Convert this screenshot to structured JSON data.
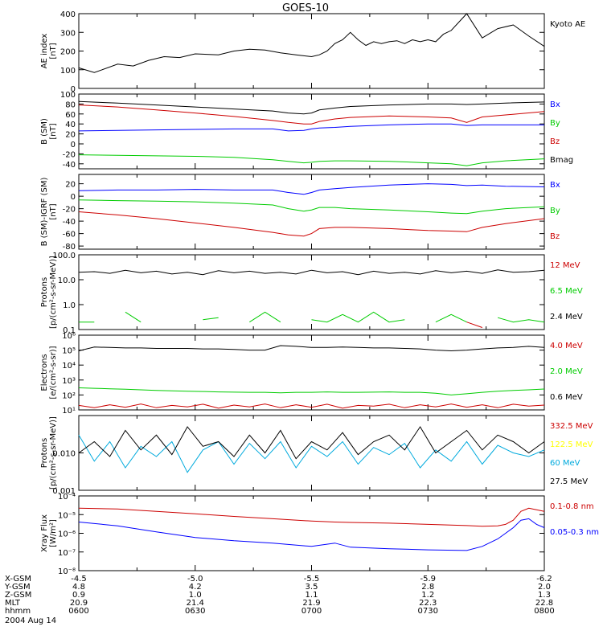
{
  "title": "GOES-10",
  "colors": {
    "black": "#000000",
    "red": "#cc0000",
    "green": "#00cc00",
    "blue": "#0000ff",
    "yellow": "#ffff00",
    "cyan": "#00aadd"
  },
  "chart_data": [
    {
      "type": "line",
      "id": "ae",
      "ylabel": [
        "AE index",
        "[nT]"
      ],
      "yscale": "linear",
      "ylim": [
        0,
        400
      ],
      "ticks": [
        {
          "v": 0,
          "label": "0"
        },
        {
          "v": 100,
          "label": "100"
        },
        {
          "v": 200,
          "label": "200"
        },
        {
          "v": 300,
          "label": "300"
        },
        {
          "v": 400,
          "label": "400"
        }
      ],
      "x": [
        0,
        4,
        6,
        10,
        14,
        18,
        22,
        26,
        30,
        36,
        40,
        44,
        48,
        52,
        56,
        60,
        62,
        64,
        66,
        68,
        70,
        72,
        74,
        76,
        78,
        80,
        82,
        84,
        86,
        88,
        90,
        92,
        94,
        96,
        100,
        104,
        108,
        112,
        116,
        120
      ],
      "series": [
        {
          "name": "Kyoto AE",
          "color": "black",
          "values": [
            110,
            85,
            100,
            130,
            120,
            150,
            170,
            165,
            185,
            180,
            200,
            210,
            205,
            190,
            180,
            170,
            180,
            200,
            240,
            260,
            300,
            260,
            230,
            250,
            240,
            250,
            255,
            240,
            260,
            250,
            260,
            250,
            290,
            310,
            400,
            270,
            320,
            340,
            280,
            225
          ]
        }
      ]
    },
    {
      "type": "line",
      "id": "bsm",
      "ylabel": [
        "B (SM)",
        "[nT]"
      ],
      "yscale": "linear",
      "ylim": [
        -50,
        100
      ],
      "ticks": [
        {
          "v": -40,
          "label": "-40"
        },
        {
          "v": -20,
          "label": "-20"
        },
        {
          "v": 0,
          "label": "0"
        },
        {
          "v": 20,
          "label": "20"
        },
        {
          "v": 40,
          "label": "40"
        },
        {
          "v": 60,
          "label": "60"
        },
        {
          "v": 80,
          "label": "80"
        },
        {
          "v": 100,
          "label": "100"
        }
      ],
      "x": [
        0,
        10,
        20,
        30,
        40,
        50,
        54,
        58,
        60,
        62,
        66,
        70,
        80,
        90,
        96,
        100,
        104,
        110,
        120
      ],
      "series": [
        {
          "name": "Bx",
          "color": "blue",
          "values": [
            26,
            27,
            28,
            29,
            30,
            30,
            26,
            27,
            30,
            32,
            33,
            35,
            38,
            40,
            40,
            37,
            38,
            38,
            38
          ]
        },
        {
          "name": "By",
          "color": "green",
          "values": [
            -22,
            -23,
            -24,
            -25,
            -27,
            -32,
            -35,
            -38,
            -37,
            -35,
            -34,
            -34,
            -35,
            -38,
            -40,
            -44,
            -38,
            -34,
            -30
          ]
        },
        {
          "name": "Bz",
          "color": "red",
          "values": [
            78,
            74,
            68,
            62,
            55,
            47,
            43,
            40,
            40,
            45,
            50,
            53,
            56,
            54,
            52,
            43,
            54,
            58,
            65
          ]
        },
        {
          "name": "Bmag",
          "color": "black",
          "values": [
            85,
            82,
            78,
            74,
            70,
            66,
            62,
            60,
            62,
            68,
            72,
            75,
            78,
            80,
            80,
            79,
            80,
            82,
            84
          ]
        }
      ]
    },
    {
      "type": "line",
      "id": "dbsm",
      "ylabel": [
        "B (SM)-IGRF (SM)",
        "[nT]"
      ],
      "yscale": "linear",
      "ylim": [
        -85,
        35
      ],
      "ticks": [
        {
          "v": -80,
          "label": "-80"
        },
        {
          "v": -60,
          "label": "-60"
        },
        {
          "v": -40,
          "label": "-40"
        },
        {
          "v": -20,
          "label": "-20"
        },
        {
          "v": 0,
          "label": "0"
        },
        {
          "v": 20,
          "label": "20"
        }
      ],
      "x": [
        0,
        10,
        20,
        30,
        40,
        50,
        54,
        58,
        60,
        62,
        66,
        70,
        80,
        90,
        96,
        100,
        104,
        110,
        120
      ],
      "series": [
        {
          "name": "Bx",
          "color": "blue",
          "values": [
            9,
            10,
            10,
            11,
            10,
            10,
            6,
            3,
            6,
            10,
            12,
            14,
            18,
            20,
            19,
            17,
            18,
            16,
            15
          ]
        },
        {
          "name": "By",
          "color": "green",
          "values": [
            -6,
            -7,
            -8,
            -9,
            -11,
            -14,
            -20,
            -24,
            -22,
            -18,
            -18,
            -20,
            -22,
            -25,
            -27,
            -28,
            -24,
            -20,
            -17
          ]
        },
        {
          "name": "Bz",
          "color": "red",
          "values": [
            -25,
            -30,
            -36,
            -43,
            -50,
            -58,
            -62,
            -64,
            -60,
            -52,
            -50,
            -50,
            -52,
            -55,
            -56,
            -57,
            -50,
            -44,
            -36
          ]
        }
      ]
    },
    {
      "type": "line",
      "id": "protons_low",
      "ylabel": [
        "Protons",
        "[p/(cm²-s-sr-MeV)]"
      ],
      "yscale": "log",
      "ylim": [
        0.1,
        100
      ],
      "ticks": [
        {
          "v": 0.1,
          "label": "0.1"
        },
        {
          "v": 1,
          "label": "1.0"
        },
        {
          "v": 10,
          "label": "10.0"
        },
        {
          "v": 100,
          "label": "100.0"
        }
      ],
      "x": [
        0,
        4,
        8,
        12,
        16,
        20,
        24,
        28,
        32,
        36,
        40,
        44,
        48,
        52,
        56,
        60,
        64,
        68,
        72,
        76,
        80,
        84,
        88,
        92,
        96,
        100,
        104,
        108,
        112,
        116,
        120
      ],
      "series": [
        {
          "name": "12 MeV",
          "color": "red",
          "values": [
            null,
            null,
            null,
            null,
            null,
            null,
            null,
            null,
            null,
            null,
            null,
            null,
            null,
            null,
            null,
            null,
            null,
            null,
            null,
            null,
            null,
            null,
            null,
            null,
            null,
            0.2,
            0.12,
            null,
            null,
            null,
            null
          ]
        },
        {
          "name": "6.5 MeV",
          "color": "green",
          "values": [
            0.2,
            0.2,
            null,
            0.5,
            0.2,
            null,
            0.2,
            null,
            0.25,
            0.3,
            null,
            0.2,
            0.5,
            0.2,
            null,
            0.25,
            0.2,
            0.4,
            0.2,
            0.5,
            0.2,
            0.25,
            null,
            0.2,
            0.4,
            0.2,
            null,
            0.3,
            0.2,
            0.25,
            0.2
          ]
        },
        {
          "name": "2.4 MeV",
          "color": "black",
          "values": [
            20,
            21,
            18,
            24,
            19,
            22,
            17,
            20,
            16,
            23,
            19,
            22,
            18,
            20,
            17,
            24,
            19,
            21,
            16,
            22,
            18,
            20,
            17,
            23,
            19,
            22,
            18,
            25,
            20,
            21,
            24
          ]
        }
      ]
    },
    {
      "type": "line",
      "id": "electrons",
      "ylabel": [
        "Electrons",
        "[e/(cm²-s-sr)]"
      ],
      "yscale": "log",
      "ylim": [
        10,
        1000000
      ],
      "ticks": [
        {
          "v": 10,
          "label": "10¹"
        },
        {
          "v": 100,
          "label": "10²"
        },
        {
          "v": 1000,
          "label": "10³"
        },
        {
          "v": 10000,
          "label": "10⁴"
        },
        {
          "v": 100000,
          "label": "10⁵"
        },
        {
          "v": 1000000,
          "label": "10⁶"
        }
      ],
      "x": [
        0,
        4,
        8,
        12,
        16,
        20,
        24,
        28,
        32,
        36,
        40,
        44,
        48,
        52,
        56,
        60,
        64,
        68,
        72,
        76,
        80,
        84,
        88,
        92,
        96,
        100,
        104,
        108,
        112,
        116,
        120
      ],
      "series": [
        {
          "name": "4.0 MeV",
          "color": "red",
          "values": [
            20,
            14,
            22,
            15,
            25,
            14,
            20,
            16,
            24,
            13,
            21,
            16,
            25,
            14,
            22,
            15,
            24,
            13,
            20,
            18,
            24,
            14,
            22,
            16,
            25,
            15,
            22,
            14,
            24,
            18,
            21
          ]
        },
        {
          "name": "2.0 MeV",
          "color": "green",
          "values": [
            300,
            280,
            260,
            240,
            220,
            200,
            190,
            180,
            170,
            160,
            155,
            150,
            150,
            140,
            150,
            150,
            160,
            150,
            150,
            155,
            160,
            150,
            150,
            130,
            100,
            120,
            150,
            180,
            200,
            220,
            250
          ]
        },
        {
          "name": "0.6 MeV",
          "color": "black",
          "values": [
            90000,
            160000,
            150000,
            140000,
            140000,
            130000,
            130000,
            130000,
            120000,
            120000,
            110000,
            100000,
            100000,
            200000,
            180000,
            150000,
            150000,
            160000,
            150000,
            140000,
            140000,
            130000,
            120000,
            100000,
            90000,
            100000,
            120000,
            140000,
            150000,
            180000,
            150000
          ]
        }
      ]
    },
    {
      "type": "line",
      "id": "protons_high",
      "ylabel": [
        "Protons",
        "[p/(cm²-s-sr-MeV)]"
      ],
      "yscale": "log",
      "ylim": [
        0.001,
        0.1
      ],
      "ticks": [
        {
          "v": 0.001,
          "label": "0.001"
        },
        {
          "v": 0.01,
          "label": "0.010"
        }
      ],
      "x": [
        0,
        4,
        8,
        12,
        16,
        20,
        24,
        28,
        32,
        36,
        40,
        44,
        48,
        52,
        56,
        60,
        64,
        68,
        72,
        76,
        80,
        84,
        88,
        92,
        96,
        100,
        104,
        108,
        112,
        116,
        120
      ],
      "series": [
        {
          "name": "332.5 MeV",
          "color": "red",
          "values": [
            null,
            null,
            null,
            null,
            null,
            null,
            null,
            null,
            null,
            null,
            null,
            null,
            null,
            null,
            null,
            null,
            null,
            null,
            null,
            null,
            null,
            null,
            null,
            null,
            null,
            null,
            null,
            null,
            null,
            null,
            null
          ]
        },
        {
          "name": "122.5 MeV",
          "color": "yellow",
          "values": [
            null,
            null,
            null,
            null,
            null,
            null,
            null,
            null,
            null,
            null,
            null,
            null,
            null,
            null,
            null,
            null,
            null,
            null,
            null,
            null,
            null,
            null,
            null,
            null,
            null,
            null,
            null,
            null,
            null,
            null,
            null
          ]
        },
        {
          "name": "60 MeV",
          "color": "cyan",
          "values": [
            0.03,
            0.006,
            0.02,
            0.004,
            0.015,
            0.008,
            0.02,
            0.003,
            0.012,
            0.02,
            0.005,
            0.018,
            0.007,
            0.02,
            0.004,
            0.015,
            0.008,
            0.02,
            0.005,
            0.014,
            0.009,
            0.018,
            0.004,
            0.012,
            0.006,
            0.02,
            0.005,
            0.016,
            0.01,
            0.008,
            0.012
          ]
        },
        {
          "name": "27.5 MeV",
          "color": "black",
          "values": [
            0.01,
            0.02,
            0.008,
            0.04,
            0.012,
            0.03,
            0.009,
            0.05,
            0.015,
            0.02,
            0.008,
            0.03,
            0.01,
            0.04,
            0.007,
            0.02,
            0.012,
            0.035,
            0.009,
            0.02,
            0.03,
            0.012,
            0.05,
            0.01,
            0.02,
            0.04,
            0.012,
            0.03,
            0.02,
            0.01,
            0.02
          ]
        }
      ]
    },
    {
      "type": "line",
      "id": "xray",
      "ylabel": [
        "Xray Flux",
        "[W/m²]"
      ],
      "yscale": "log",
      "ylim": [
        1e-08,
        0.0001
      ],
      "ticks": [
        {
          "v": 1e-08,
          "label": "10⁻⁸"
        },
        {
          "v": 1e-07,
          "label": "10⁻⁷"
        },
        {
          "v": 1e-06,
          "label": "10⁻⁶"
        },
        {
          "v": 1e-05,
          "label": "10⁻⁵"
        },
        {
          "v": 0.0001,
          "label": "10⁻⁴"
        }
      ],
      "x": [
        0,
        10,
        20,
        30,
        40,
        50,
        60,
        66,
        70,
        80,
        90,
        100,
        104,
        108,
        110,
        112,
        114,
        116,
        118,
        120
      ],
      "series": [
        {
          "name": "0.1-0.8 nm",
          "color": "red",
          "values": [
            2.2e-05,
            2e-05,
            1.5e-05,
            1.1e-05,
            8e-06,
            6e-06,
            4.5e-06,
            4e-06,
            3.8e-06,
            3.5e-06,
            3e-06,
            2.6e-06,
            2.4e-06,
            2.5e-06,
            3e-06,
            5e-06,
            1.5e-05,
            2.2e-05,
            1.8e-05,
            1.5e-05
          ]
        },
        {
          "name": "0.05-0.3 nm",
          "color": "blue",
          "values": [
            4e-06,
            2.5e-06,
            1.2e-06,
            6e-07,
            4e-07,
            3e-07,
            2e-07,
            3e-07,
            1.8e-07,
            1.5e-07,
            1.3e-07,
            1.2e-07,
            2e-07,
            5e-07,
            1e-06,
            2e-06,
            5e-06,
            6e-06,
            3e-06,
            2e-06
          ]
        }
      ]
    }
  ],
  "ephemeris": {
    "rows": [
      {
        "label": "X-GSM",
        "values": [
          "-4.5",
          "-5.0",
          "-5.5",
          "-5.9",
          "-6.2"
        ]
      },
      {
        "label": "Y-GSM",
        "values": [
          "4.8",
          "4.2",
          "3.5",
          "2.8",
          "2.0"
        ]
      },
      {
        "label": "Z-GSM",
        "values": [
          "0.9",
          "1.0",
          "1.1",
          "1.2",
          "1.3"
        ]
      },
      {
        "label": "MLT",
        "values": [
          "20.9",
          "21.4",
          "21.9",
          "22.3",
          "22.8"
        ]
      },
      {
        "label": "hhmm",
        "values": [
          "0600",
          "0630",
          "0700",
          "0730",
          "0800"
        ]
      }
    ],
    "date": "2004 Aug 14"
  }
}
